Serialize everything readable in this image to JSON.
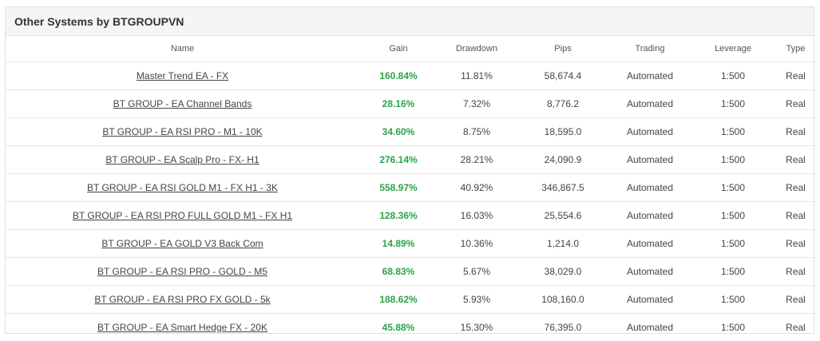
{
  "panel": {
    "title": "Other Systems by BTGROUPVN"
  },
  "columns": {
    "name": "Name",
    "gain": "Gain",
    "drawdown": "Drawdown",
    "pips": "Pips",
    "trading": "Trading",
    "leverage": "Leverage",
    "type": "Type"
  },
  "rows": [
    {
      "name": "Master Trend EA - FX",
      "gain": "160.84%",
      "drawdown": "11.81%",
      "pips": "58,674.4",
      "trading": "Automated",
      "leverage": "1:500",
      "type": "Real"
    },
    {
      "name": "BT GROUP - EA Channel Bands",
      "gain": "28.16%",
      "drawdown": "7.32%",
      "pips": "8,776.2",
      "trading": "Automated",
      "leverage": "1:500",
      "type": "Real"
    },
    {
      "name": "BT GROUP - EA RSI PRO - M1 - 10K",
      "gain": "34.60%",
      "drawdown": "8.75%",
      "pips": "18,595.0",
      "trading": "Automated",
      "leverage": "1:500",
      "type": "Real"
    },
    {
      "name": "BT GROUP - EA Scalp Pro - FX- H1",
      "gain": "276.14%",
      "drawdown": "28.21%",
      "pips": "24,090.9",
      "trading": "Automated",
      "leverage": "1:500",
      "type": "Real"
    },
    {
      "name": "BT GROUP - EA RSI GOLD M1 - FX H1 - 3K",
      "gain": "558.97%",
      "drawdown": "40.92%",
      "pips": "346,867.5",
      "trading": "Automated",
      "leverage": "1:500",
      "type": "Real"
    },
    {
      "name": "BT GROUP - EA RSI PRO FULL GOLD M1 - FX H1",
      "gain": "128.36%",
      "drawdown": "16.03%",
      "pips": "25,554.6",
      "trading": "Automated",
      "leverage": "1:500",
      "type": "Real"
    },
    {
      "name": "BT GROUP - EA GOLD V3 Back Com",
      "gain": "14.89%",
      "drawdown": "10.36%",
      "pips": "1,214.0",
      "trading": "Automated",
      "leverage": "1:500",
      "type": "Real"
    },
    {
      "name": "BT GROUP - EA RSI PRO - GOLD - M5",
      "gain": "68.83%",
      "drawdown": "5.67%",
      "pips": "38,029.0",
      "trading": "Automated",
      "leverage": "1:500",
      "type": "Real"
    },
    {
      "name": "BT GROUP - EA RSI PRO FX GOLD - 5k",
      "gain": "188.62%",
      "drawdown": "5.93%",
      "pips": "108,160.0",
      "trading": "Automated",
      "leverage": "1:500",
      "type": "Real"
    },
    {
      "name": "BT GROUP - EA Smart Hedge FX - 20K",
      "gain": "45.88%",
      "drawdown": "15.30%",
      "pips": "76,395.0",
      "trading": "Automated",
      "leverage": "1:500",
      "type": "Real"
    }
  ]
}
